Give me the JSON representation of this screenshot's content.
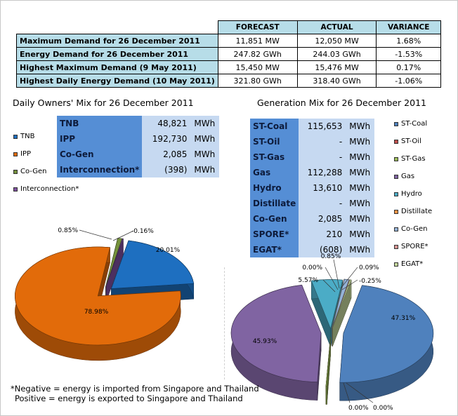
{
  "summary": {
    "headers": [
      "FORECAST",
      "ACTUAL",
      "VARIANCE"
    ],
    "rows": [
      {
        "label": "Maximum Demand for 26 December 2011",
        "forecast": "11,851  MW",
        "actual": "12,050  MW",
        "variance": "1.68%"
      },
      {
        "label": "Energy Demand for 26 December 2011",
        "forecast": "247.82  GWh",
        "actual": "244.03  GWh",
        "variance": "-1.53%"
      },
      {
        "label": "Highest Maximum Demand (9 May 2011)",
        "forecast": "15,450  MW",
        "actual": "15,476  MW",
        "variance": "0.17%"
      },
      {
        "label": "Highest Daily Energy Demand (10 May 2011)",
        "forecast": "321.80  GWh",
        "actual": "318.40  GWh",
        "variance": "-1.06%"
      }
    ]
  },
  "owners": {
    "title": "Daily Owners' Mix for 26 December 2011",
    "table": [
      {
        "name": "TNB",
        "value": "48,821",
        "unit": "MWh"
      },
      {
        "name": "IPP",
        "value": "192,730",
        "unit": "MWh"
      },
      {
        "name": "Co-Gen",
        "value": "2,085",
        "unit": "MWh"
      },
      {
        "name": "Interconnection*",
        "value": "(398)",
        "unit": "MWh"
      }
    ],
    "legend": [
      "TNB",
      "IPP",
      "Co-Gen",
      "Interconnection*"
    ]
  },
  "generation": {
    "title": "Generation Mix for 26 December 2011",
    "table": [
      {
        "name": "ST-Coal",
        "value": "115,653",
        "unit": "MWh"
      },
      {
        "name": "ST-Oil",
        "value": "-",
        "unit": "MWh"
      },
      {
        "name": "ST-Gas",
        "value": "-",
        "unit": "MWh"
      },
      {
        "name": "Gas",
        "value": "112,288",
        "unit": "MWh"
      },
      {
        "name": "Hydro",
        "value": "13,610",
        "unit": "MWh"
      },
      {
        "name": "Distillate",
        "value": "-",
        "unit": "MWh"
      },
      {
        "name": "Co-Gen",
        "value": "2,085",
        "unit": "MWh"
      },
      {
        "name": "SPORE*",
        "value": "210",
        "unit": "MWh"
      },
      {
        "name": "EGAT*",
        "value": "(608)",
        "unit": "MWh"
      }
    ],
    "legend": [
      "ST-Coal",
      "ST-Oil",
      "ST-Gas",
      "Gas",
      "Hydro",
      "Distillate",
      "Co-Gen",
      "SPORE*",
      "EGAT*"
    ]
  },
  "note": {
    "line1": "*Negative = energy is imported from Singapore and Thailand",
    "line2": "Positive = energy is exported to Singapore and Thailand"
  },
  "chart_data": [
    {
      "type": "pie",
      "title": "Daily Owners' Mix for 26 December 2011",
      "categories": [
        "TNB",
        "IPP",
        "Co-Gen",
        "Interconnection*"
      ],
      "values": [
        20.01,
        78.98,
        0.85,
        -0.16
      ],
      "labels": [
        "20.01%",
        "78.98%",
        "0.85%",
        "-0.16%"
      ],
      "colors": [
        "#1e6fc0",
        "#e26b0a",
        "#76923c",
        "#7f4fa0"
      ],
      "legend_position": "left"
    },
    {
      "type": "pie",
      "title": "Generation Mix for 26 December 2011",
      "categories": [
        "ST-Coal",
        "ST-Oil",
        "ST-Gas",
        "Gas",
        "Hydro",
        "Distillate",
        "Co-Gen",
        "SPORE*",
        "EGAT*"
      ],
      "values": [
        47.31,
        0.0,
        0.0,
        45.93,
        5.57,
        0.0,
        0.85,
        0.09,
        -0.25
      ],
      "labels": [
        "47.31%",
        "0.00%",
        "0.00%",
        "45.93%",
        "5.57%",
        "0.00%",
        "0.85%",
        "0.09%",
        "-0.25%"
      ],
      "colors": [
        "#4f81bd",
        "#c0504d",
        "#9bbb59",
        "#8064a2",
        "#4bacc6",
        "#f79646",
        "#95b3d7",
        "#d99694",
        "#c3d69b"
      ],
      "legend_position": "right"
    }
  ]
}
